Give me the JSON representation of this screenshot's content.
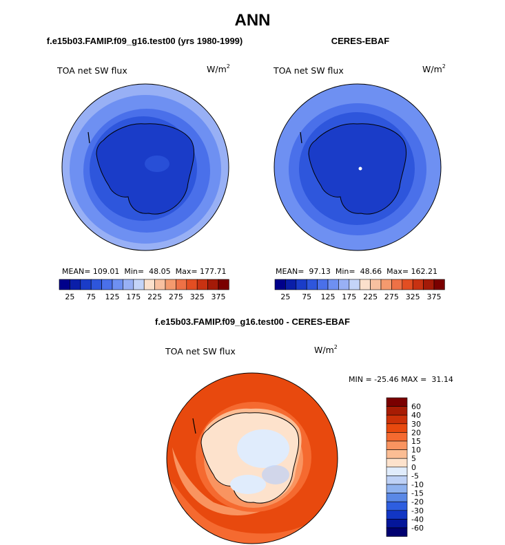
{
  "page_title": "ANN",
  "panels": [
    {
      "subtitle": "f.e15b03.FAMIP.f09_g16.test00 (yrs 1980-1999)",
      "variable": "TOA net SW flux",
      "units_base": "W/m",
      "units_exp": "2",
      "stats_text": "MEAN= 109.01  Min=  48.05  Max= 177.71",
      "mean": 109.01,
      "min": 48.05,
      "max": 177.71
    },
    {
      "subtitle": "CERES-EBAF",
      "variable": "TOA net SW flux",
      "units_base": "W/m",
      "units_exp": "2",
      "stats_text": "MEAN=  97.13  Min=  48.66  Max= 162.21",
      "mean": 97.13,
      "min": 48.66,
      "max": 162.21
    }
  ],
  "diff_panel": {
    "subtitle": "f.e15b03.FAMIP.f09_g16.test00 - CERES-EBAF",
    "variable": "TOA net SW flux",
    "units_base": "W/m",
    "units_exp": "2",
    "stats_text": "MIN = -25.46 MAX =  31.14",
    "min": -25.46,
    "max": 31.14
  },
  "chart_data": [
    {
      "type": "heatmap",
      "projection": "south-polar-stereographic",
      "title": "f.e15b03.FAMIP.f09_g16.test00 (yrs 1980-1999)",
      "variable": "TOA net SW flux",
      "units": "W/m2",
      "colorbar": {
        "orientation": "horizontal",
        "tick_labels": [
          "25",
          "75",
          "125",
          "175",
          "225",
          "275",
          "325",
          "375"
        ],
        "colors": [
          "#00008b",
          "#0a1ea8",
          "#1a3cc8",
          "#2e56dc",
          "#4a70ea",
          "#6e90f2",
          "#98b0f5",
          "#c4d4f8",
          "#fbe0cc",
          "#f8c0a0",
          "#f49a6e",
          "#ee7146",
          "#e34e22",
          "#c83212",
          "#a41a08",
          "#7a0000"
        ]
      },
      "stats": {
        "mean": 109.01,
        "min": 48.05,
        "max": 177.71
      }
    },
    {
      "type": "heatmap",
      "projection": "south-polar-stereographic",
      "title": "CERES-EBAF",
      "variable": "TOA net SW flux",
      "units": "W/m2",
      "colorbar": {
        "orientation": "horizontal",
        "tick_labels": [
          "25",
          "75",
          "125",
          "175",
          "225",
          "275",
          "325",
          "375"
        ],
        "colors": [
          "#00008b",
          "#0a1ea8",
          "#1a3cc8",
          "#2e56dc",
          "#4a70ea",
          "#6e90f2",
          "#98b0f5",
          "#c4d4f8",
          "#fbe0cc",
          "#f8c0a0",
          "#f49a6e",
          "#ee7146",
          "#e34e22",
          "#c83212",
          "#a41a08",
          "#7a0000"
        ]
      },
      "stats": {
        "mean": 97.13,
        "min": 48.66,
        "max": 162.21
      }
    },
    {
      "type": "heatmap",
      "projection": "south-polar-stereographic",
      "title": "f.e15b03.FAMIP.f09_g16.test00 - CERES-EBAF",
      "variable": "TOA net SW flux",
      "units": "W/m2",
      "colorbar": {
        "orientation": "vertical",
        "tick_labels": [
          "60",
          "40",
          "30",
          "20",
          "15",
          "10",
          "5",
          "0",
          "-5",
          "-10",
          "-15",
          "-20",
          "-30",
          "-40",
          "-60"
        ],
        "colors": [
          "#7a0000",
          "#a81c04",
          "#cc3108",
          "#e8490e",
          "#f56a30",
          "#f99460",
          "#fbbd94",
          "#fde2cc",
          "#e0ecfc",
          "#bed1f6",
          "#8fb2ef",
          "#5a88e6",
          "#2e5ee0",
          "#1236c4",
          "#04169a",
          "#000070"
        ]
      },
      "stats": {
        "min": -25.46,
        "max": 31.14
      }
    }
  ]
}
